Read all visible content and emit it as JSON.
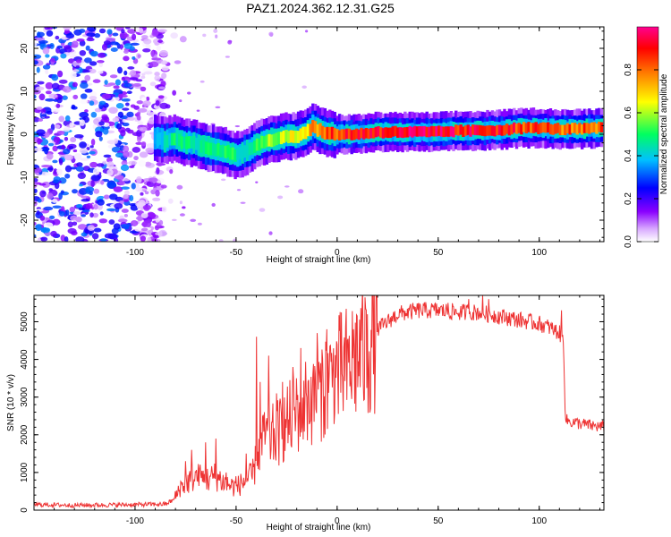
{
  "figure": {
    "title": "PAZ1.2024.362.12.31.G25"
  },
  "chart_data": [
    {
      "id": "spectrogram",
      "type": "heatmap",
      "title": "PAZ1.2024.362.12.31.G25",
      "xlabel": "Height of straight line (km)",
      "ylabel": "Frequency (Hz)",
      "xlim": [
        -150,
        132
      ],
      "ylim": [
        -25,
        25
      ],
      "x_ticks": [
        -100,
        -50,
        0,
        50,
        100
      ],
      "x_tick_labels": [
        "-100",
        "-50",
        "0",
        "50",
        "100"
      ],
      "y_ticks": [
        -20,
        -10,
        0,
        10,
        20
      ],
      "y_tick_labels": [
        "-20",
        "-10",
        "0",
        "10",
        "20"
      ],
      "colorbar": {
        "label": "Normalized spectral amplitude",
        "range": [
          0,
          1
        ],
        "ticks": [
          0,
          0.2,
          0.4,
          0.6,
          0.8
        ],
        "tick_labels": [
          "0.0",
          "0.2",
          "0.4",
          "0.6",
          "0.8"
        ],
        "colormap": "rainbow",
        "colors": [
          "#ffffff",
          "#8a00ff",
          "#0000ff",
          "#00c0ff",
          "#00ff60",
          "#ffff00",
          "#ff8000",
          "#ff0000",
          "#ff0090"
        ]
      },
      "ridge": {
        "description_free": true,
        "x": [
          -90,
          -85,
          -80,
          -75,
          -70,
          -65,
          -60,
          -55,
          -50,
          -45,
          -40,
          -35,
          -30,
          -25,
          -20,
          -15,
          -12,
          -10,
          -5,
          0,
          10,
          20,
          30,
          40,
          50,
          60,
          70,
          80,
          90,
          100,
          110,
          120,
          132
        ],
        "freq": [
          -1,
          -1.5,
          -1,
          -2,
          -2,
          -3,
          -3.5,
          -4,
          -5,
          -4,
          -2.5,
          -1.5,
          -1,
          -0.5,
          -0.5,
          0.5,
          1.8,
          1.2,
          0.2,
          0,
          0,
          0.5,
          0.5,
          0.5,
          0.5,
          0.8,
          0.8,
          1,
          1.4,
          1.5,
          1.2,
          1.2,
          1.5
        ],
        "amplitude": [
          0.35,
          0.45,
          0.5,
          0.5,
          0.45,
          0.55,
          0.5,
          0.55,
          0.5,
          0.45,
          0.55,
          0.6,
          0.6,
          0.65,
          0.7,
          0.75,
          0.8,
          0.8,
          0.85,
          0.9,
          0.95,
          0.95,
          1,
          1,
          1,
          0.95,
          0.95,
          0.95,
          0.9,
          0.9,
          0.85,
          0.85,
          0.85
        ]
      },
      "noise_region": {
        "x_range": [
          -150,
          -85
        ],
        "amplitude_range": [
          0,
          0.35
        ]
      }
    },
    {
      "id": "snr",
      "type": "line",
      "xlabel": "Height of straight line (km)",
      "ylabel": "SNR (10 * v/v)",
      "xlim": [
        -150,
        132
      ],
      "ylim": [
        0,
        5700
      ],
      "x_ticks": [
        -100,
        -50,
        0,
        50,
        100
      ],
      "x_tick_labels": [
        "-100",
        "-50",
        "0",
        "50",
        "100"
      ],
      "y_ticks": [
        0,
        1000,
        2000,
        3000,
        4000,
        5000
      ],
      "y_tick_labels": [
        "0",
        "1000",
        "2000",
        "3000",
        "4000",
        "5000"
      ],
      "color": "#ee3333",
      "series": [
        {
          "x": [
            -150,
            -130,
            -110,
            -95,
            -85,
            -80,
            -78,
            -75,
            -70,
            -65,
            -60,
            -55,
            -50,
            -45,
            -42,
            -40,
            -38,
            -35,
            -30,
            -25,
            -20,
            -15,
            -10,
            -5,
            0,
            5,
            10,
            15,
            20,
            25,
            30,
            40,
            50,
            60,
            70,
            75,
            80,
            90,
            100,
            105,
            110,
            112,
            113,
            115,
            120,
            125,
            132
          ],
          "y": [
            150,
            130,
            140,
            150,
            160,
            300,
            600,
            700,
            900,
            800,
            900,
            700,
            600,
            800,
            900,
            1300,
            1700,
            1900,
            2000,
            2300,
            2600,
            2900,
            3200,
            3400,
            3600,
            3800,
            4100,
            4200,
            4800,
            5000,
            5200,
            5300,
            5300,
            5250,
            5250,
            5200,
            5150,
            5050,
            4950,
            4850,
            4700,
            4500,
            2400,
            2350,
            2300,
            2250,
            2200
          ]
        }
      ],
      "spikes": {
        "x": [
          -80,
          -75,
          -72,
          -68,
          -65,
          -63,
          -60,
          -55,
          -50,
          -45,
          -43,
          -40,
          -38,
          -36,
          -34,
          -30,
          -27,
          -25,
          -22,
          -20,
          -18,
          -15,
          -12,
          -10,
          -8,
          -5,
          -2,
          0,
          5,
          8,
          12,
          15,
          55,
          65,
          72,
          75,
          100,
          111
        ],
        "y": [
          500,
          1300,
          1600,
          1100,
          1800,
          900,
          1900,
          1000,
          900,
          1500,
          1200,
          4600,
          3400,
          2600,
          4100,
          3100,
          3400,
          2500,
          3800,
          3500,
          4300,
          3000,
          3600,
          4700,
          3900,
          4800,
          3800,
          4400,
          4500,
          4800,
          4500,
          5200,
          5500,
          5600,
          5700,
          5600,
          5100,
          5300
        ]
      },
      "noise_amplitude": 120
    }
  ]
}
